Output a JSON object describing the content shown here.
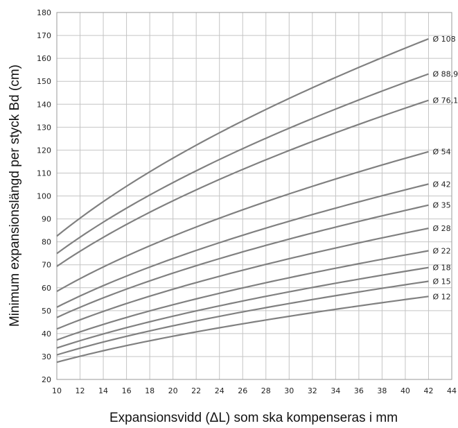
{
  "chart_data": {
    "type": "line",
    "xlabel": "Expansionsvidd (ΔL) som ska kompenseras i mm",
    "ylabel": "Minimum expansionslängd per styck Bd (cm)",
    "xlim": [
      10,
      44
    ],
    "ylim": [
      20,
      180
    ],
    "xticks": [
      10,
      12,
      14,
      16,
      18,
      20,
      22,
      24,
      26,
      28,
      30,
      32,
      34,
      36,
      38,
      40,
      42,
      44
    ],
    "yticks": [
      20,
      30,
      40,
      50,
      60,
      70,
      80,
      90,
      100,
      110,
      120,
      130,
      140,
      150,
      160,
      170,
      180
    ],
    "grid": true,
    "series_color": "#808080",
    "x": [
      10,
      42
    ],
    "series": [
      {
        "name": "Ø 108",
        "values": [
          82.5,
          168.5
        ]
      },
      {
        "name": "Ø 88,9",
        "values": [
          74.9,
          153.2
        ]
      },
      {
        "name": "Ø 76,1",
        "values": [
          69.3,
          141.7
        ]
      },
      {
        "name": "Ø 54",
        "values": [
          58.4,
          119.3
        ]
      },
      {
        "name": "Ø 42",
        "values": [
          51.5,
          105.2
        ]
      },
      {
        "name": "Ø 35",
        "values": [
          47.0,
          96.0
        ]
      },
      {
        "name": "Ø 28",
        "values": [
          42.0,
          85.9
        ]
      },
      {
        "name": "Ø 22",
        "values": [
          37.2,
          76.1
        ]
      },
      {
        "name": "Ø 18",
        "values": [
          33.7,
          68.8
        ]
      },
      {
        "name": "Ø 15",
        "values": [
          30.7,
          62.8
        ]
      },
      {
        "name": "Ø 12",
        "values": [
          27.5,
          56.2
        ]
      }
    ]
  }
}
